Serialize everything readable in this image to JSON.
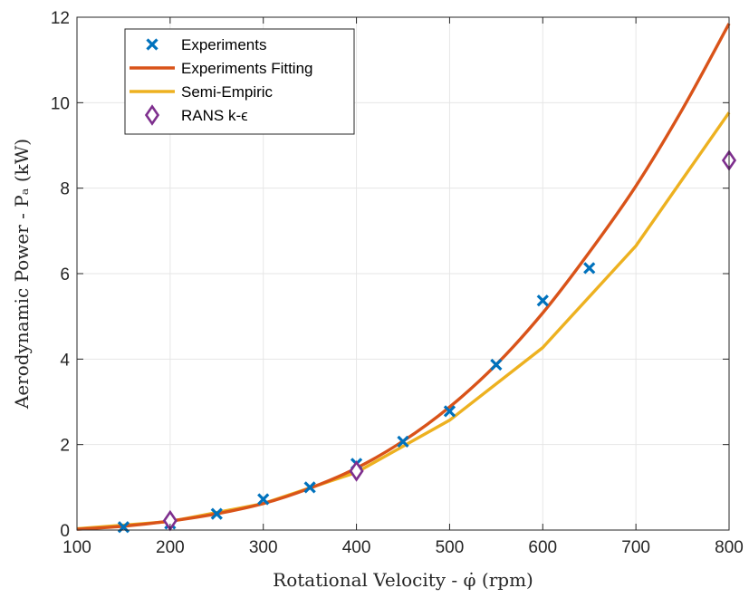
{
  "chart_data": {
    "type": "line",
    "xlabel": "Rotational Velocity - φ̇ (rpm)",
    "ylabel": "Aerodynamic Power - Pₐ (kW)",
    "xlim": [
      100,
      800
    ],
    "ylim": [
      0,
      12
    ],
    "xticks": [
      100,
      200,
      300,
      400,
      500,
      600,
      700,
      800
    ],
    "yticks": [
      0,
      2,
      4,
      6,
      8,
      10,
      12
    ],
    "grid": true,
    "legend_position": "top-left",
    "series": [
      {
        "name": "Experiments",
        "kind": "scatter",
        "marker": "x",
        "color": "#0072BD",
        "x": [
          150,
          200,
          250,
          300,
          350,
          400,
          450,
          500,
          550,
          600,
          650
        ],
        "y": [
          0.07,
          0.15,
          0.38,
          0.72,
          1.0,
          1.55,
          2.07,
          2.78,
          3.87,
          5.37,
          6.13
        ]
      },
      {
        "name": "Experiments Fitting",
        "kind": "line",
        "color": "#D95319",
        "x": [
          100,
          150,
          200,
          250,
          300,
          350,
          400,
          450,
          500,
          550,
          600,
          650,
          700,
          750,
          800
        ],
        "y": [
          0.02,
          0.09,
          0.21,
          0.38,
          0.62,
          0.98,
          1.45,
          2.08,
          2.88,
          3.87,
          5.08,
          6.5,
          8.05,
          9.85,
          11.85
        ]
      },
      {
        "name": "Semi-Empiric",
        "kind": "line",
        "color": "#EDB120",
        "x": [
          100,
          200,
          300,
          400,
          500,
          600,
          700,
          800
        ],
        "y": [
          0.03,
          0.2,
          0.62,
          1.35,
          2.57,
          4.27,
          6.65,
          9.77
        ]
      },
      {
        "name": "RANS k-ϵ",
        "kind": "scatter",
        "marker": "diamond",
        "color": "#7E2F8E",
        "x": [
          200,
          400,
          800
        ],
        "y": [
          0.22,
          1.38,
          8.65
        ]
      }
    ]
  }
}
